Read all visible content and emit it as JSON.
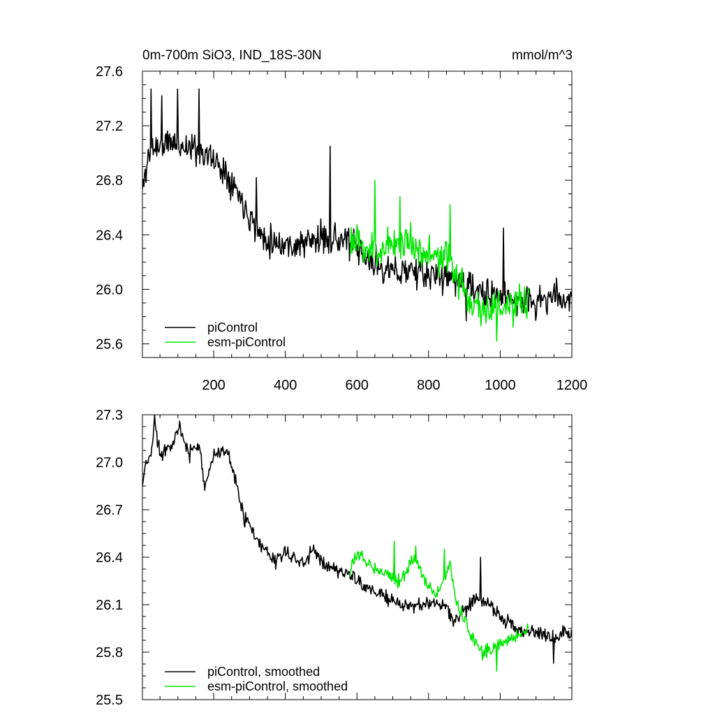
{
  "figure": {
    "title_left": "0m-700m SiO3, IND_18S-30N",
    "title_right": "mmol/m^3"
  },
  "colors": {
    "control": "#000000",
    "esm": "#00e600",
    "axis": "#000000",
    "background": "#ffffff"
  },
  "chart_data": [
    {
      "id": "raw",
      "type": "line",
      "xlim": [
        1,
        1200
      ],
      "ylim": [
        25.5,
        27.6
      ],
      "x_ticks": [
        200,
        400,
        600,
        800,
        1000,
        1200
      ],
      "x_tick_labels": [
        "200",
        "400",
        "600",
        "800",
        "1000",
        "1200"
      ],
      "y_ticks": [
        25.6,
        26.0,
        26.4,
        26.8,
        27.2,
        27.6
      ],
      "y_tick_labels": [
        "25.6",
        "26.0",
        "26.4",
        "26.8",
        "27.2",
        "27.6"
      ],
      "legend_location": "bottom-left",
      "series": [
        {
          "name": "piControl",
          "color": "#000000",
          "x_range": [
            1,
            1200
          ],
          "anchors": [
            [
              1,
              26.72
            ],
            [
              15,
              26.95
            ],
            [
              30,
              27.05
            ],
            [
              50,
              27.05
            ],
            [
              80,
              27.08
            ],
            [
              120,
              27.05
            ],
            [
              160,
              27.02
            ],
            [
              200,
              26.95
            ],
            [
              240,
              26.85
            ],
            [
              270,
              26.7
            ],
            [
              300,
              26.55
            ],
            [
              330,
              26.4
            ],
            [
              370,
              26.35
            ],
            [
              420,
              26.32
            ],
            [
              470,
              26.35
            ],
            [
              520,
              26.38
            ],
            [
              580,
              26.35
            ],
            [
              620,
              26.22
            ],
            [
              660,
              26.18
            ],
            [
              700,
              26.12
            ],
            [
              750,
              26.15
            ],
            [
              800,
              26.1
            ],
            [
              850,
              26.1
            ],
            [
              900,
              26.05
            ],
            [
              950,
              25.95
            ],
            [
              1000,
              25.95
            ],
            [
              1050,
              25.92
            ],
            [
              1100,
              25.9
            ],
            [
              1150,
              25.95
            ],
            [
              1200,
              25.92
            ]
          ],
          "noise_amp": 0.17,
          "seed": 11,
          "peaks": [
            [
              25,
              27.47
            ],
            [
              55,
              27.42
            ],
            [
              100,
              27.47
            ],
            [
              160,
              27.47
            ],
            [
              320,
              26.82
            ],
            [
              525,
              27.05
            ],
            [
              905,
              25.77
            ],
            [
              1010,
              26.45
            ]
          ]
        },
        {
          "name": "esm-piControl",
          "color": "#00e600",
          "x_range": [
            580,
            1080
          ],
          "anchors": [
            [
              580,
              26.35
            ],
            [
              620,
              26.3
            ],
            [
              660,
              26.28
            ],
            [
              700,
              26.35
            ],
            [
              750,
              26.35
            ],
            [
              800,
              26.25
            ],
            [
              850,
              26.22
            ],
            [
              880,
              26.1
            ],
            [
              920,
              25.9
            ],
            [
              960,
              25.85
            ],
            [
              1000,
              25.88
            ],
            [
              1040,
              25.85
            ],
            [
              1080,
              25.92
            ]
          ],
          "noise_amp": 0.2,
          "seed": 23,
          "peaks": [
            [
              650,
              26.8
            ],
            [
              720,
              26.68
            ],
            [
              860,
              26.62
            ],
            [
              990,
              25.62
            ]
          ]
        }
      ]
    },
    {
      "id": "smoothed",
      "type": "line",
      "xlim": [
        1,
        1200
      ],
      "ylim": [
        25.5,
        27.3
      ],
      "x_ticks": [
        200,
        400,
        600,
        800,
        1000,
        1200
      ],
      "x_tick_labels": [],
      "y_ticks": [
        25.5,
        25.8,
        26.1,
        26.4,
        26.7,
        27.0,
        27.3
      ],
      "y_tick_labels": [
        "25.5",
        "25.8",
        "26.1",
        "26.4",
        "26.7",
        "27.0",
        "27.3"
      ],
      "legend_location": "bottom-left",
      "series": [
        {
          "name": "piControl, smoothed",
          "color": "#000000",
          "x_range": [
            1,
            1200
          ],
          "anchors": [
            [
              1,
              26.85
            ],
            [
              10,
              26.98
            ],
            [
              25,
              27.05
            ],
            [
              35,
              27.25
            ],
            [
              50,
              27.05
            ],
            [
              80,
              27.12
            ],
            [
              105,
              27.2
            ],
            [
              130,
              27.05
            ],
            [
              160,
              27.12
            ],
            [
              175,
              26.85
            ],
            [
              200,
              27.05
            ],
            [
              240,
              27.05
            ],
            [
              260,
              26.9
            ],
            [
              280,
              26.68
            ],
            [
              300,
              26.6
            ],
            [
              320,
              26.5
            ],
            [
              340,
              26.45
            ],
            [
              370,
              26.38
            ],
            [
              400,
              26.42
            ],
            [
              430,
              26.4
            ],
            [
              450,
              26.35
            ],
            [
              480,
              26.45
            ],
            [
              510,
              26.35
            ],
            [
              540,
              26.32
            ],
            [
              580,
              26.3
            ],
            [
              600,
              26.25
            ],
            [
              650,
              26.18
            ],
            [
              700,
              26.12
            ],
            [
              750,
              26.08
            ],
            [
              800,
              26.12
            ],
            [
              850,
              26.08
            ],
            [
              870,
              26.0
            ],
            [
              900,
              26.05
            ],
            [
              930,
              26.15
            ],
            [
              960,
              26.12
            ],
            [
              1000,
              26.02
            ],
            [
              1050,
              25.95
            ],
            [
              1100,
              25.92
            ],
            [
              1150,
              25.9
            ],
            [
              1200,
              25.94
            ]
          ],
          "noise_amp": 0.07,
          "seed": 37,
          "peaks": [
            [
              35,
              27.3
            ],
            [
              105,
              27.26
            ],
            [
              945,
              26.4
            ],
            [
              1150,
              25.73
            ]
          ]
        },
        {
          "name": "esm-piControl, smoothed",
          "color": "#00e600",
          "x_range": [
            580,
            1080
          ],
          "anchors": [
            [
              580,
              26.3
            ],
            [
              600,
              26.42
            ],
            [
              640,
              26.35
            ],
            [
              680,
              26.3
            ],
            [
              720,
              26.25
            ],
            [
              760,
              26.4
            ],
            [
              790,
              26.25
            ],
            [
              820,
              26.15
            ],
            [
              860,
              26.35
            ],
            [
              880,
              26.1
            ],
            [
              900,
              26.0
            ],
            [
              920,
              25.9
            ],
            [
              950,
              25.8
            ],
            [
              980,
              25.82
            ],
            [
              1000,
              25.85
            ],
            [
              1040,
              25.9
            ],
            [
              1080,
              25.95
            ]
          ],
          "noise_amp": 0.06,
          "seed": 53,
          "peaks": [
            [
              705,
              26.5
            ],
            [
              765,
              26.47
            ],
            [
              845,
              26.45
            ],
            [
              990,
              25.68
            ]
          ]
        }
      ]
    }
  ]
}
